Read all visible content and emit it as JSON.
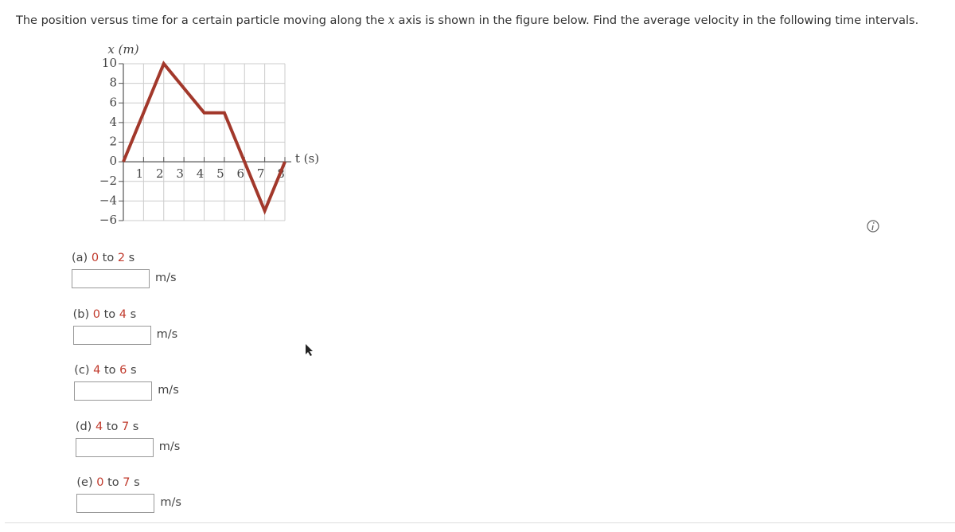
{
  "question": {
    "before": "The position versus time for a certain particle moving along the ",
    "var": "x",
    "after": " axis is shown in the figure below. Find the average velocity in the following time intervals."
  },
  "chart_data": {
    "type": "line",
    "y_label": "x (m)",
    "x_label": "t (s)",
    "x": [
      0,
      2,
      4,
      5,
      7,
      8
    ],
    "series": [
      {
        "color": "#a2382b",
        "values": [
          0,
          10,
          5,
          5,
          -5,
          0
        ]
      }
    ],
    "xlim": [
      0,
      8
    ],
    "ylim": [
      -6,
      10
    ],
    "xticks": [
      1,
      2,
      3,
      4,
      5,
      6,
      7,
      8
    ],
    "yticks": [
      {
        "value": -6,
        "label": "−6"
      },
      {
        "value": -4,
        "label": "−4"
      },
      {
        "value": -2,
        "label": "−2"
      },
      0,
      2,
      4,
      6,
      8,
      10
    ],
    "grid": true
  },
  "parts": [
    {
      "label": "(a)",
      "start": 0,
      "sep": "to",
      "end": 2,
      "unit": "s",
      "input_unit": "m/s"
    },
    {
      "label": "(b)",
      "start": 0,
      "sep": "to",
      "end": 4,
      "unit": "s",
      "input_unit": "m/s"
    },
    {
      "label": "(c)",
      "start": 4,
      "sep": "to",
      "end": 6,
      "unit": "s",
      "input_unit": "m/s"
    },
    {
      "label": "(d)",
      "start": 4,
      "sep": "to",
      "end": 7,
      "unit": "s",
      "input_unit": "m/s"
    },
    {
      "label": "(e)",
      "start": 0,
      "sep": "to",
      "end": 7,
      "unit": "s",
      "input_unit": "m/s"
    }
  ]
}
